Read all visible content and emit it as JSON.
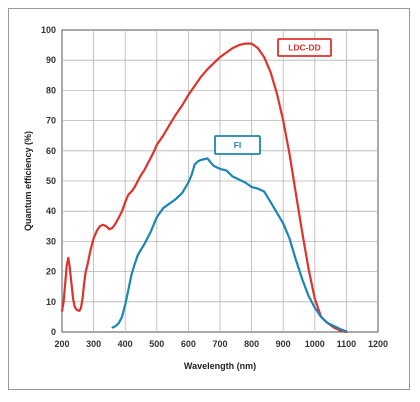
{
  "chart_data": {
    "type": "line",
    "xlabel": "Wavelength (nm)",
    "ylabel": "Quantum efficiency (%)",
    "xlim": [
      200,
      1200
    ],
    "ylim": [
      0,
      100
    ],
    "xticks": [
      200,
      300,
      400,
      500,
      600,
      700,
      800,
      900,
      1000,
      1100,
      1200
    ],
    "yticks": [
      0,
      10,
      20,
      30,
      40,
      50,
      60,
      70,
      80,
      90,
      100
    ],
    "grid": true,
    "series": [
      {
        "name": "LDC-DD",
        "color": "#e0322c",
        "x": [
          200,
          205,
          210,
          215,
          220,
          225,
          230,
          235,
          240,
          245,
          250,
          255,
          260,
          265,
          270,
          275,
          280,
          290,
          300,
          310,
          320,
          330,
          340,
          350,
          360,
          370,
          380,
          390,
          400,
          410,
          420,
          430,
          440,
          450,
          460,
          470,
          480,
          490,
          500,
          520,
          540,
          560,
          580,
          600,
          620,
          640,
          660,
          680,
          700,
          720,
          740,
          760,
          780,
          800,
          820,
          840,
          860,
          880,
          900,
          920,
          940,
          960,
          980,
          1000,
          1020,
          1040,
          1060,
          1080,
          1100
        ],
        "values": [
          7,
          10,
          16,
          22,
          24.5,
          21,
          16,
          11,
          8.5,
          7.5,
          7.2,
          7,
          8,
          11,
          16,
          20,
          22,
          27,
          31,
          33.5,
          35,
          35.5,
          35,
          34,
          34.5,
          36,
          38,
          40,
          43,
          45.5,
          46.5,
          48,
          50,
          52,
          53.5,
          55.5,
          57.5,
          59.5,
          62,
          65,
          68.5,
          72,
          75,
          78.5,
          81.5,
          84.5,
          87,
          89,
          91,
          92.5,
          94,
          95,
          95.5,
          95.5,
          94,
          91,
          86,
          79,
          70,
          59,
          46,
          33,
          21,
          11,
          5,
          3,
          1.5,
          0.5,
          0
        ]
      },
      {
        "name": "FI",
        "color": "#1b86b4",
        "x": [
          360,
          370,
          380,
          390,
          400,
          410,
          420,
          430,
          440,
          460,
          480,
          500,
          520,
          540,
          560,
          580,
          600,
          610,
          620,
          630,
          640,
          660,
          680,
          700,
          720,
          740,
          760,
          780,
          800,
          820,
          840,
          860,
          880,
          900,
          920,
          940,
          960,
          980,
          1000,
          1020,
          1040,
          1060,
          1080,
          1100
        ],
        "values": [
          1.5,
          2,
          3,
          5,
          9,
          14,
          19,
          22.5,
          25.5,
          29,
          33,
          38,
          41,
          42.5,
          44,
          46,
          49.5,
          52,
          55.5,
          56.5,
          57,
          57.5,
          55,
          54,
          53.5,
          51.5,
          50.5,
          49.5,
          48,
          47.5,
          46.5,
          43,
          39.5,
          36,
          31,
          24,
          17.5,
          12,
          8,
          5,
          3,
          2,
          1,
          0.2
        ]
      }
    ],
    "legend": [
      {
        "label": "LDC-DD",
        "color": "#e0322c"
      },
      {
        "label": "FI",
        "color": "#1b86b4"
      }
    ]
  }
}
